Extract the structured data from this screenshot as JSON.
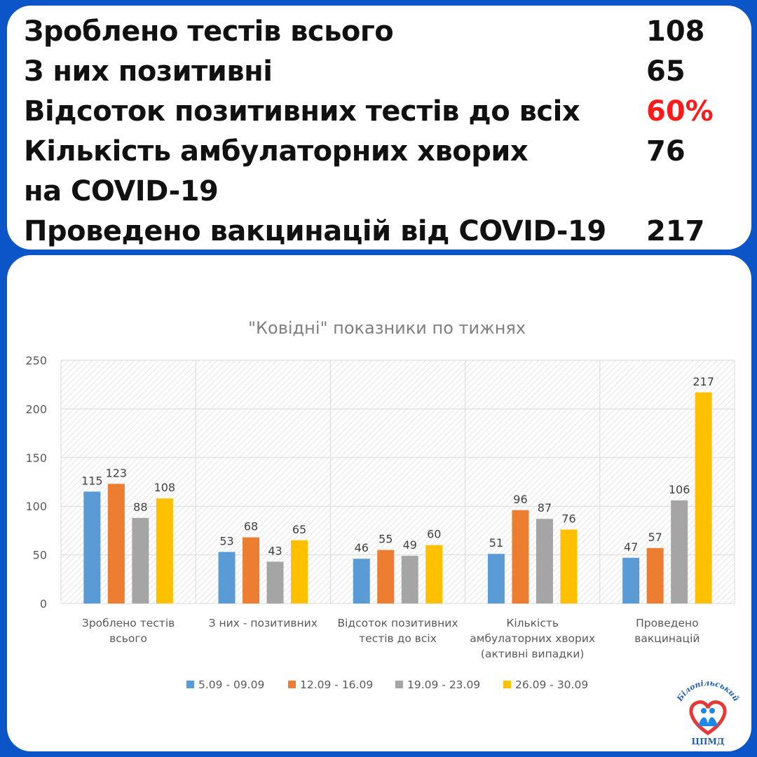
{
  "stats": [
    {
      "label": "Зроблено тестів всього",
      "value": "108"
    },
    {
      "label": "З них позитивні",
      "value": "65"
    },
    {
      "label": "Відсоток позитивних тестів до всіх",
      "value": "60%",
      "color": "#ff1a1a"
    },
    {
      "label": "Кількість амбулаторних хворих",
      "label2": "на COVID-19",
      "value": "76"
    },
    {
      "label": "Проведено вакцинацій від COVID-19",
      "value": "217"
    }
  ],
  "chart_data": {
    "type": "bar",
    "title": "\"Ковідні\" показники по тижнях",
    "categories": [
      [
        "Зроблено тестів",
        "всього"
      ],
      [
        "З них - позитивних"
      ],
      [
        "Відсоток позитивних",
        "тестів до всіх"
      ],
      [
        "Кількість",
        "амбулаторних хворих",
        "(активні випадки)"
      ],
      [
        "Проведено",
        "вакцинацій"
      ]
    ],
    "series": [
      {
        "name": "5.09 - 09.09",
        "color": "#5b9bd5",
        "values": [
          115,
          53,
          46,
          51,
          47
        ]
      },
      {
        "name": "12.09 - 16.09",
        "color": "#ed7d31",
        "values": [
          123,
          68,
          55,
          96,
          57
        ]
      },
      {
        "name": "19.09 - 23.09",
        "color": "#a5a5a5",
        "values": [
          88,
          43,
          49,
          87,
          106
        ]
      },
      {
        "name": "26.09 - 30.09",
        "color": "#ffc000",
        "values": [
          108,
          65,
          60,
          76,
          217
        ]
      }
    ],
    "ylim": [
      0,
      250
    ],
    "yticks": [
      0,
      50,
      100,
      150,
      200,
      250
    ],
    "grid": true,
    "legend": "bottom",
    "data_labels": true
  },
  "logo": {
    "arc_text": "Білопільський",
    "bottom_text": "ЦПМД",
    "colors": {
      "heart": "#e53935",
      "figures": "#1e88e5"
    }
  }
}
